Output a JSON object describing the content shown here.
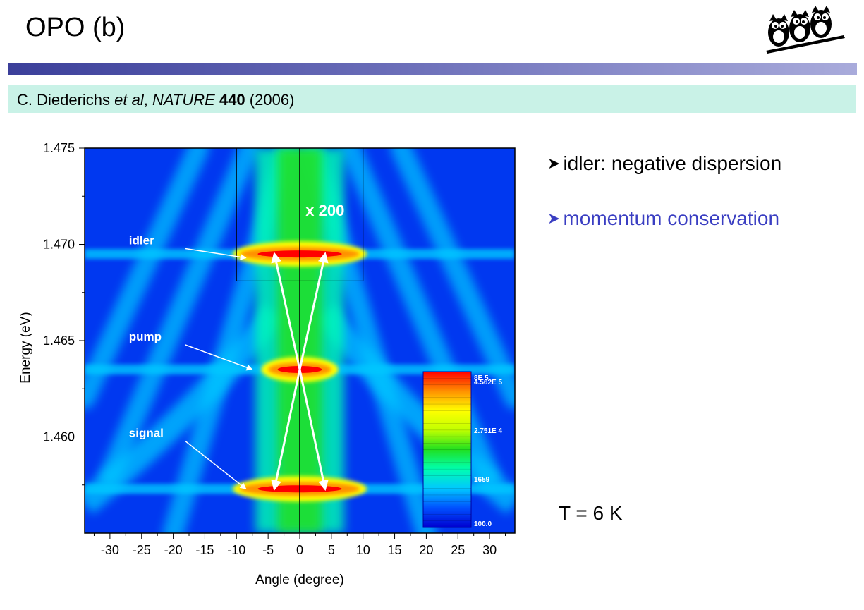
{
  "slide": {
    "title": "OPO (b)",
    "citation": {
      "authors": "C. Diederichs",
      "etal": "et al",
      "journal": "NATURE",
      "volume": "440",
      "year": "(2006)"
    },
    "bullets": [
      {
        "text": "idler: negative dispersion",
        "color": "#000000"
      },
      {
        "text": "momentum conservation",
        "color": "#3a3ec2"
      }
    ],
    "temperature": "T = 6 K",
    "bullet_glyph": "arrowhead-bullet-icon",
    "logo": "owls-logo-icon"
  },
  "chart_data": {
    "type": "heatmap",
    "title": "",
    "xlabel": "Angle (degree)",
    "ylabel": "Energy (eV)",
    "xlim": [
      -34,
      34
    ],
    "ylim": [
      1.455,
      1.475
    ],
    "xticks": [
      -30,
      -25,
      -20,
      -15,
      -10,
      -5,
      0,
      5,
      10,
      15,
      20,
      25,
      30
    ],
    "yticks": [
      1.46,
      1.465,
      1.47,
      1.475
    ],
    "ytick_labels": [
      "1.460",
      "1.465",
      "1.470",
      "1.475"
    ],
    "colormap": [
      "#0000d0",
      "#0050ff",
      "#00c8ff",
      "#00ffb0",
      "#20e020",
      "#c0ff00",
      "#ffff00",
      "#ff9000",
      "#ff0000"
    ],
    "background_color": "#0038f0",
    "colorbar": {
      "labels": [
        "8E 5",
        "4.562E 5",
        "2.751E 4",
        "1659",
        "100.0"
      ],
      "values": [
        800000,
        456200,
        27510,
        1659,
        100
      ]
    },
    "annotations": [
      {
        "label": "idler",
        "text_pos": [
          -27,
          1.47
        ],
        "target": [
          -8.5,
          1.4693
        ],
        "energy": 1.4695
      },
      {
        "label": "pump",
        "text_pos": [
          -27,
          1.465
        ],
        "target": [
          -7.5,
          1.4635
        ],
        "energy": 1.4635
      },
      {
        "label": "signal",
        "text_pos": [
          -27,
          1.46
        ],
        "target": [
          -8.5,
          1.4573
        ],
        "energy": 1.4573
      }
    ],
    "magnified_region": {
      "label": "x 200",
      "x_range": [
        -10,
        10
      ],
      "y_range": [
        1.4681,
        1.475
      ]
    },
    "conservation_arrows": [
      {
        "from": [
          0,
          1.4635
        ],
        "to": [
          -4,
          1.4695
        ]
      },
      {
        "from": [
          0,
          1.4635
        ],
        "to": [
          4,
          1.4695
        ]
      },
      {
        "from": [
          0,
          1.4635
        ],
        "to": [
          -4,
          1.4573
        ]
      },
      {
        "from": [
          0,
          1.4635
        ],
        "to": [
          4,
          1.4573
        ]
      }
    ]
  }
}
